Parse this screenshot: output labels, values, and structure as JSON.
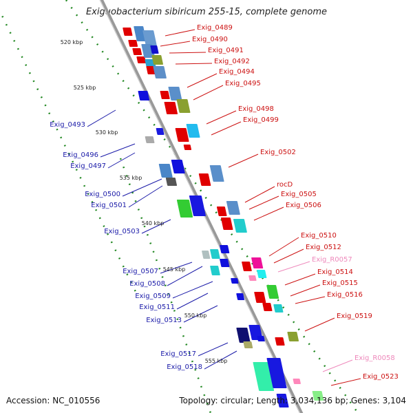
{
  "title": "Exiguobacterium sibiricum 255-15, complete genome",
  "footer": {
    "accession": "Accession: NC_010556",
    "topology": "Topology: circular; Length: 3,034,136 bp; Genes: 3,104"
  },
  "colors": {
    "label_blue": "#1a1aa8",
    "label_red": "#cc1010",
    "label_pink": "#ee88bb",
    "backbone": "#999999",
    "dots": "#228822"
  },
  "kbp_ticks": [
    "520 kbp",
    "525 kbp",
    "530 kbp",
    "535 kbp",
    "540 kbp",
    "545 kbp",
    "550 kbp",
    "555 kbp"
  ],
  "genes": [
    {
      "label": "Exig_0489",
      "color": "red"
    },
    {
      "label": "Exig_0490",
      "color": "red"
    },
    {
      "label": "Exig_0491",
      "color": "red"
    },
    {
      "label": "Exig_0492",
      "color": "red"
    },
    {
      "label": "Exig_0494",
      "color": "red"
    },
    {
      "label": "Exig_0495",
      "color": "red"
    },
    {
      "label": "Exig_0498",
      "color": "red"
    },
    {
      "label": "Exig_0499",
      "color": "red"
    },
    {
      "label": "Exig_0502",
      "color": "red"
    },
    {
      "label": "rocD",
      "color": "red"
    },
    {
      "label": "Exig_0505",
      "color": "red"
    },
    {
      "label": "Exig_0506",
      "color": "red"
    },
    {
      "label": "Exig_0510",
      "color": "red"
    },
    {
      "label": "Exig_0512",
      "color": "red"
    },
    {
      "label": "Exig_R0057",
      "color": "pink"
    },
    {
      "label": "Exig_0514",
      "color": "red"
    },
    {
      "label": "Exig_0515",
      "color": "red"
    },
    {
      "label": "Exig_0516",
      "color": "red"
    },
    {
      "label": "Exig_0519",
      "color": "red"
    },
    {
      "label": "Exig_R0058",
      "color": "pink"
    },
    {
      "label": "Exig_0523",
      "color": "red"
    },
    {
      "label": "Exig_0493",
      "color": "blue"
    },
    {
      "label": "Exig_0496",
      "color": "blue"
    },
    {
      "label": "Exig_0497",
      "color": "blue"
    },
    {
      "label": "Exig_0500",
      "color": "blue"
    },
    {
      "label": "Exig_0501",
      "color": "blue"
    },
    {
      "label": "Exig_0503",
      "color": "blue"
    },
    {
      "label": "Exig_0507",
      "color": "blue"
    },
    {
      "label": "Exig_0508",
      "color": "blue"
    },
    {
      "label": "Exig_0509",
      "color": "blue"
    },
    {
      "label": "Exig_0511",
      "color": "blue"
    },
    {
      "label": "Exig_0513",
      "color": "blue"
    },
    {
      "label": "Exig_0517",
      "color": "blue"
    },
    {
      "label": "Exig_0518",
      "color": "blue"
    }
  ]
}
